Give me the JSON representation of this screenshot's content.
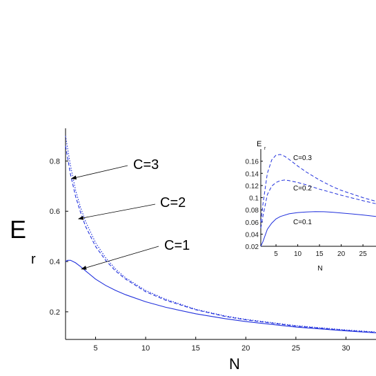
{
  "chart_data": [
    {
      "type": "line",
      "xlabel": "N",
      "ylabel": "E",
      "ylabel_sub": "r",
      "xlim": [
        2,
        33
      ],
      "ylim": [
        0.09,
        0.93
      ],
      "xticks": [
        5,
        10,
        15,
        20,
        25,
        30
      ],
      "yticks": [
        0.2,
        0.4,
        0.6,
        0.8
      ],
      "grid": false,
      "series": [
        {
          "name": "C=3",
          "style": "dotted",
          "color": "#1e2edc",
          "x": [
            2,
            2.5,
            3,
            3.5,
            4,
            5,
            6,
            7,
            8,
            10,
            12,
            15,
            18,
            20,
            25,
            30,
            33
          ],
          "y": [
            0.9,
            0.78,
            0.685,
            0.615,
            0.56,
            0.475,
            0.415,
            0.37,
            0.335,
            0.285,
            0.25,
            0.21,
            0.183,
            0.17,
            0.145,
            0.128,
            0.12
          ]
        },
        {
          "name": "C=2",
          "style": "dashed",
          "color": "#1e2edc",
          "x": [
            2,
            2.5,
            3,
            3.5,
            4,
            5,
            6,
            7,
            8,
            10,
            12,
            15,
            18,
            20,
            25,
            30,
            33
          ],
          "y": [
            0.86,
            0.745,
            0.66,
            0.595,
            0.54,
            0.46,
            0.405,
            0.362,
            0.33,
            0.28,
            0.246,
            0.208,
            0.181,
            0.168,
            0.143,
            0.126,
            0.118
          ]
        },
        {
          "name": "C=1",
          "style": "solid",
          "color": "#1e2edc",
          "x": [
            2,
            2.2,
            2.5,
            3,
            3.5,
            4,
            5,
            6,
            7,
            8,
            10,
            12,
            15,
            18,
            20,
            25,
            30,
            33
          ],
          "y": [
            0.4,
            0.405,
            0.405,
            0.395,
            0.38,
            0.363,
            0.33,
            0.305,
            0.285,
            0.268,
            0.24,
            0.218,
            0.192,
            0.172,
            0.161,
            0.139,
            0.124,
            0.116
          ]
        }
      ],
      "annotations": [
        {
          "text": "C=3",
          "x": 2.6,
          "y": 0.73
        },
        {
          "text": "C=2",
          "x": 3.3,
          "y": 0.57
        },
        {
          "text": "C=1",
          "x": 3.6,
          "y": 0.37
        }
      ]
    },
    {
      "type": "line",
      "xlabel": "N",
      "ylabel": "E",
      "ylabel_sub": "r",
      "xlim": [
        1.5,
        28
      ],
      "ylim": [
        0.02,
        0.18
      ],
      "xticks": [
        5,
        10,
        15,
        20,
        25
      ],
      "yticks": [
        0.02,
        0.04,
        0.06,
        0.08,
        0.1,
        0.12,
        0.14,
        0.16
      ],
      "grid": false,
      "series": [
        {
          "name": "C=0.3",
          "style": "dashed",
          "color": "#1e2edc",
          "x": [
            1.5,
            2,
            3,
            4,
            5,
            6,
            7,
            8,
            10,
            12,
            15,
            18,
            20,
            25,
            28
          ],
          "y": [
            0.06,
            0.09,
            0.14,
            0.162,
            0.17,
            0.171,
            0.168,
            0.163,
            0.152,
            0.142,
            0.129,
            0.118,
            0.112,
            0.1,
            0.094
          ]
        },
        {
          "name": "C=0.2",
          "style": "dashed",
          "color": "#1e2edc",
          "x": [
            1.5,
            2,
            3,
            4,
            5,
            6,
            7,
            8,
            10,
            12,
            15,
            18,
            20,
            25,
            28
          ],
          "y": [
            0.05,
            0.07,
            0.105,
            0.119,
            0.125,
            0.128,
            0.129,
            0.128,
            0.125,
            0.121,
            0.114,
            0.108,
            0.104,
            0.095,
            0.09
          ]
        },
        {
          "name": "C=0.1",
          "style": "solid",
          "color": "#1e2edc",
          "x": [
            1.5,
            2,
            3,
            4,
            5,
            6,
            8,
            10,
            12,
            14,
            16,
            18,
            20,
            25,
            28
          ],
          "y": [
            0.02,
            0.028,
            0.048,
            0.058,
            0.065,
            0.069,
            0.0735,
            0.0755,
            0.0765,
            0.077,
            0.0768,
            0.076,
            0.0748,
            0.0715,
            0.069
          ]
        }
      ],
      "annotations": [
        {
          "text": "C=0.3",
          "x": 9,
          "y": 0.165
        },
        {
          "text": "C=0.2",
          "x": 9,
          "y": 0.124
        },
        {
          "text": "C=0.1",
          "x": 9,
          "y": 0.073
        }
      ]
    }
  ]
}
